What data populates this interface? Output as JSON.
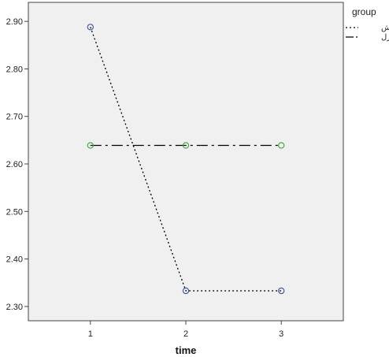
{
  "chart_data": {
    "type": "line",
    "xlabel": "time",
    "ylabel": "",
    "title": "",
    "x": [
      1,
      2,
      3
    ],
    "xticks": [
      "1",
      "2",
      "3"
    ],
    "xlim": [
      0.35,
      3.65
    ],
    "ylim": [
      2.27,
      2.94
    ],
    "yticks": [
      "2.30",
      "2.40",
      "2.50",
      "2.60",
      "2.70",
      "2.80",
      "2.90"
    ],
    "grid": false,
    "plot_background": "#f0f0f0",
    "legend": {
      "title": "group",
      "placement": "top-right-outside",
      "entries": [
        "آزمایش",
        "کنترل"
      ]
    },
    "series": [
      {
        "name": "آزمایش",
        "values": [
          2.888,
          2.333,
          2.333
        ],
        "line_style": "dotted",
        "line_color": "#000000",
        "marker_color": "#3b4fa0"
      },
      {
        "name": "کنترل",
        "values": [
          2.639,
          2.639,
          2.639
        ],
        "line_style": "dash-dot",
        "line_color": "#000000",
        "marker_color": "#3aa53a"
      }
    ]
  }
}
